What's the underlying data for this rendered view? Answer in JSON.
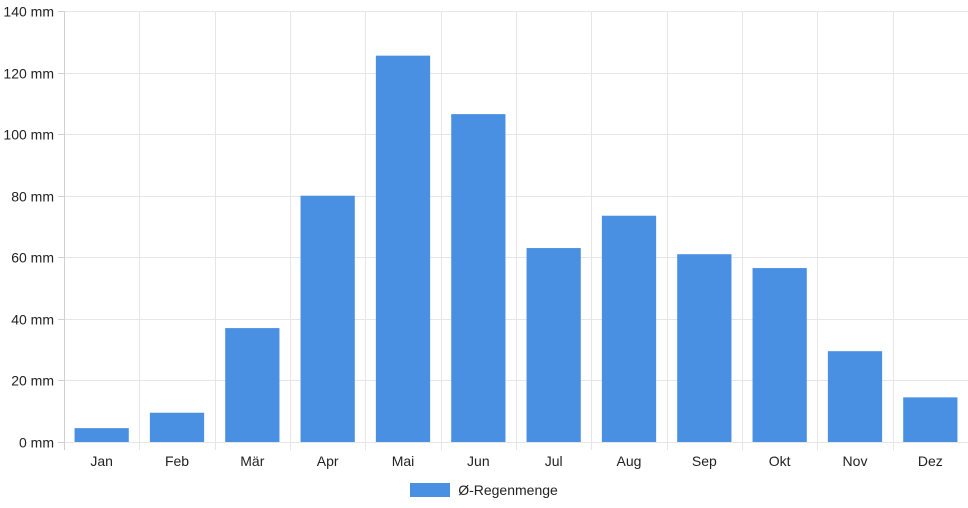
{
  "chart_data": {
    "type": "bar",
    "categories": [
      "Jan",
      "Feb",
      "Mär",
      "Apr",
      "Mai",
      "Jun",
      "Jul",
      "Aug",
      "Sep",
      "Okt",
      "Nov",
      "Dez"
    ],
    "series": [
      {
        "name": "Ø-Regenmenge",
        "values": [
          4.5,
          9.5,
          37,
          80,
          125.5,
          106.5,
          63,
          73.5,
          61,
          56.5,
          29.5,
          14.5
        ],
        "color": "#4a90e2"
      }
    ],
    "y_ticks": [
      "0 mm",
      "20 mm",
      "40 mm",
      "60 mm",
      "80 mm",
      "100 mm",
      "120 mm",
      "140 mm"
    ],
    "ylim": [
      0,
      140
    ],
    "y_tick_step": 20,
    "grid": true,
    "legend_position": "bottom"
  }
}
